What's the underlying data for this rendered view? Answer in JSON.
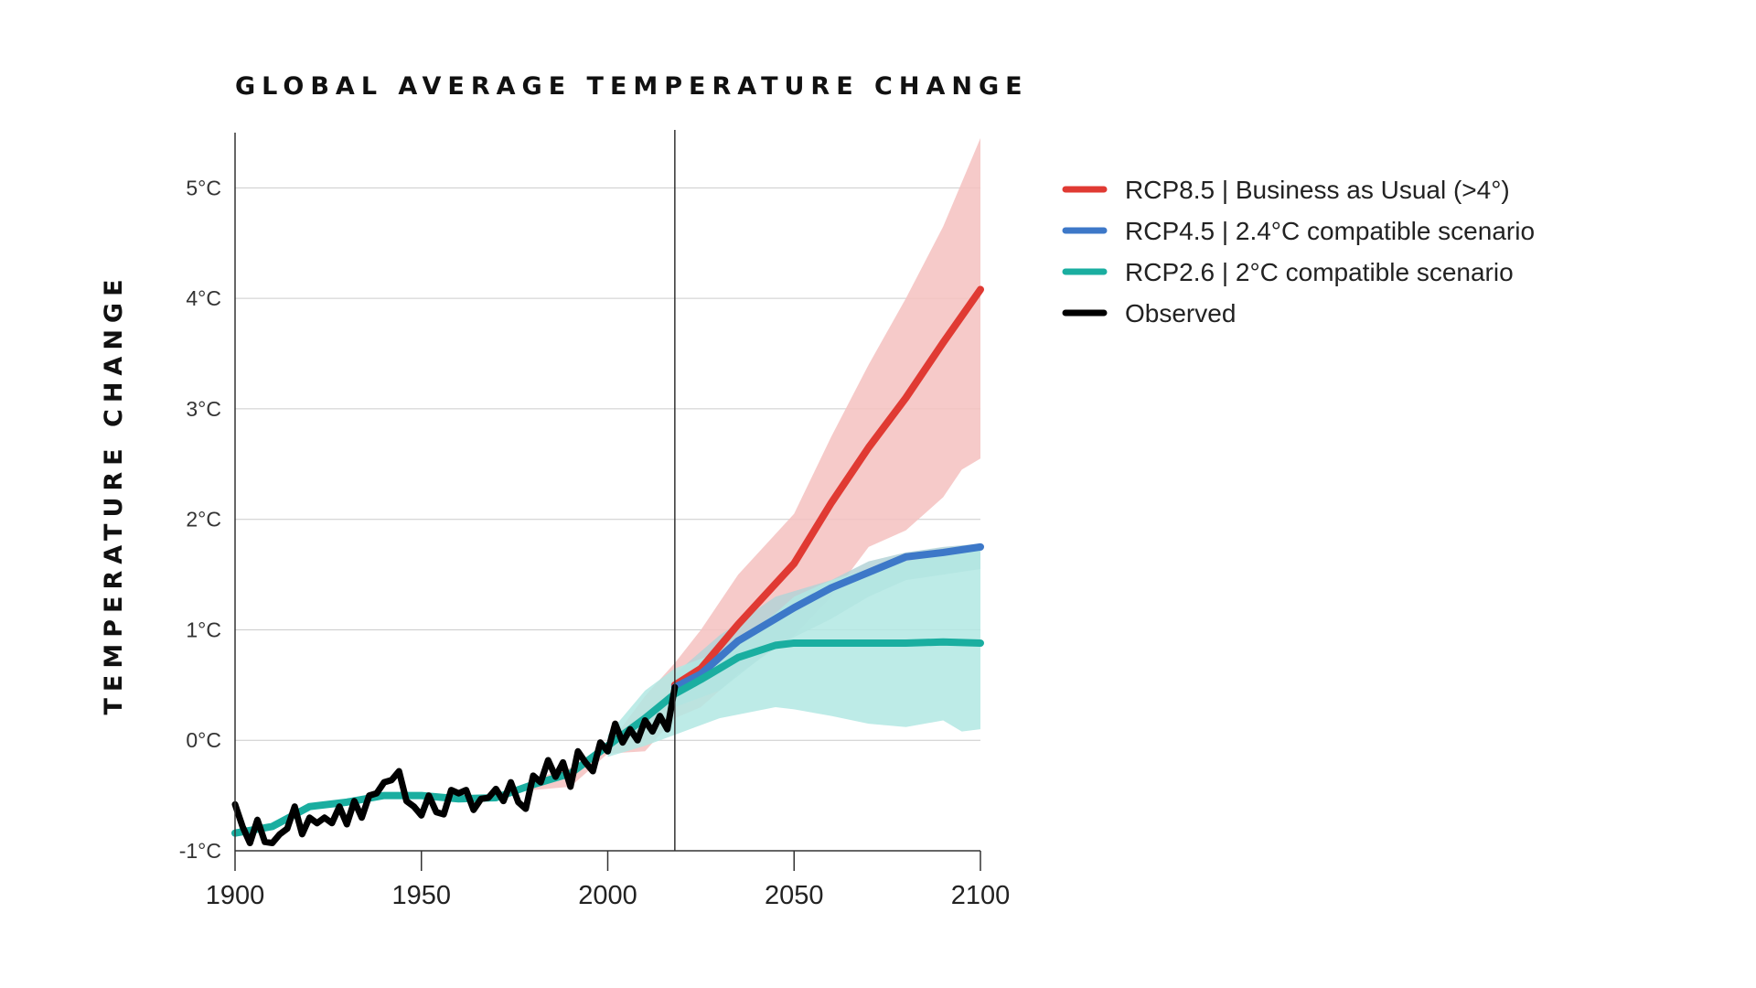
{
  "chart_data": {
    "type": "line",
    "title": "GLOBAL AVERAGE TEMPERATURE CHANGE",
    "ylabel": "TEMPERATURE CHANGE",
    "xlabel": "",
    "xlim": [
      1900,
      2100
    ],
    "ylim": [
      -1,
      5.5
    ],
    "x_ticks": [
      1900,
      1950,
      2000,
      2050,
      2100
    ],
    "x_tick_labels": [
      "1900",
      "1950",
      "2000",
      "2050",
      "2100"
    ],
    "y_ticks": [
      -1,
      0,
      1,
      2,
      3,
      4,
      5
    ],
    "y_tick_labels": [
      "-1°C",
      "0°C",
      "1°C",
      "2°C",
      "3°C",
      "4°C",
      "5°C"
    ],
    "grid": "horizontal",
    "present_year_marker": 2018,
    "legend_position": "right",
    "series": [
      {
        "name": "RCP8.5 | Business as Usual (>4°)",
        "color": "#e03a33",
        "band_color": "#f4c1c0",
        "x": [
          2018,
          2025,
          2035,
          2050,
          2060,
          2070,
          2080,
          2090,
          2100
        ],
        "values": [
          0.5,
          0.65,
          1.05,
          1.6,
          2.15,
          2.65,
          3.1,
          3.6,
          4.08
        ],
        "band_x": [
          1980,
          1990,
          2000,
          2010,
          2018,
          2025,
          2035,
          2050,
          2060,
          2070,
          2080,
          2090,
          2095,
          2100
        ],
        "band_upper": [
          -0.35,
          -0.25,
          -0.05,
          0.4,
          0.7,
          1.0,
          1.5,
          2.05,
          2.75,
          3.4,
          4.0,
          4.65,
          5.05,
          5.45
        ],
        "band_lower": [
          -0.45,
          -0.42,
          -0.12,
          -0.1,
          0.2,
          0.3,
          0.6,
          0.95,
          1.3,
          1.75,
          1.9,
          2.2,
          2.45,
          2.55
        ]
      },
      {
        "name": "RCP4.5 | 2.4°C compatible scenario",
        "color": "#3d78c8",
        "band_color": "#b4d4d7",
        "x": [
          2018,
          2025,
          2035,
          2050,
          2060,
          2070,
          2080,
          2090,
          2100
        ],
        "values": [
          0.48,
          0.6,
          0.9,
          1.2,
          1.38,
          1.52,
          1.66,
          1.7,
          1.75
        ],
        "band_x": [
          2018,
          2030,
          2045,
          2060,
          2070,
          2080,
          2090,
          2100
        ],
        "band_upper": [
          0.6,
          0.95,
          1.3,
          1.45,
          1.62,
          1.7,
          1.75,
          1.78
        ],
        "band_lower": [
          0.3,
          0.45,
          0.85,
          1.1,
          1.3,
          1.45,
          1.5,
          1.55
        ]
      },
      {
        "name": "RCP2.6 | 2°C compatible scenario",
        "color": "#1aaea0",
        "band_color": "#b1e7e3",
        "x": [
          1900,
          1910,
          1920,
          1930,
          1940,
          1950,
          1960,
          1970,
          1980,
          1990,
          2000,
          2010,
          2018,
          2025,
          2035,
          2045,
          2050,
          2060,
          2070,
          2080,
          2090,
          2100
        ],
        "values": [
          -0.84,
          -0.78,
          -0.6,
          -0.56,
          -0.5,
          -0.5,
          -0.53,
          -0.52,
          -0.4,
          -0.3,
          -0.05,
          0.2,
          0.42,
          0.55,
          0.75,
          0.86,
          0.88,
          0.88,
          0.88,
          0.88,
          0.89,
          0.88
        ],
        "band_x": [
          2000,
          2010,
          2018,
          2030,
          2045,
          2050,
          2060,
          2070,
          2080,
          2090,
          2095,
          2100
        ],
        "band_upper": [
          0.05,
          0.45,
          0.65,
          0.8,
          1.15,
          1.3,
          1.45,
          1.55,
          1.62,
          1.68,
          1.72,
          1.75
        ],
        "band_lower": [
          -0.15,
          -0.05,
          0.05,
          0.2,
          0.3,
          0.28,
          0.22,
          0.15,
          0.12,
          0.18,
          0.08,
          0.1
        ]
      },
      {
        "name": "Observed",
        "color": "#000000",
        "x": [
          1900,
          1902,
          1904,
          1906,
          1908,
          1910,
          1912,
          1914,
          1916,
          1918,
          1920,
          1922,
          1924,
          1926,
          1928,
          1930,
          1932,
          1934,
          1936,
          1938,
          1940,
          1942,
          1944,
          1946,
          1948,
          1950,
          1952,
          1954,
          1956,
          1958,
          1960,
          1962,
          1964,
          1966,
          1968,
          1970,
          1972,
          1974,
          1976,
          1978,
          1980,
          1982,
          1984,
          1986,
          1988,
          1990,
          1992,
          1994,
          1996,
          1998,
          2000,
          2002,
          2004,
          2006,
          2008,
          2010,
          2012,
          2014,
          2016,
          2018
        ],
        "values": [
          -0.58,
          -0.78,
          -0.93,
          -0.72,
          -0.92,
          -0.93,
          -0.85,
          -0.8,
          -0.6,
          -0.85,
          -0.7,
          -0.75,
          -0.7,
          -0.75,
          -0.6,
          -0.76,
          -0.55,
          -0.7,
          -0.5,
          -0.48,
          -0.38,
          -0.36,
          -0.28,
          -0.55,
          -0.6,
          -0.68,
          -0.5,
          -0.65,
          -0.67,
          -0.45,
          -0.48,
          -0.45,
          -0.63,
          -0.53,
          -0.52,
          -0.44,
          -0.55,
          -0.38,
          -0.56,
          -0.62,
          -0.32,
          -0.38,
          -0.18,
          -0.33,
          -0.2,
          -0.42,
          -0.1,
          -0.2,
          -0.28,
          -0.02,
          -0.1,
          0.15,
          -0.02,
          0.1,
          0.0,
          0.18,
          0.08,
          0.22,
          0.1,
          0.48
        ]
      }
    ]
  }
}
